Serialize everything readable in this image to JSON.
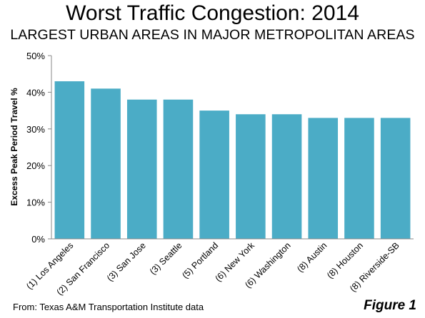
{
  "chart_data": {
    "type": "bar",
    "title": "Worst Traffic Congestion: 2014",
    "subtitle": "LARGEST URBAN AREAS IN MAJOR METROPOLITAN AREAS",
    "xlabel": "",
    "ylabel": "Excess Peak Period Travel %",
    "ylim": [
      0,
      50
    ],
    "yticks": [
      0,
      10,
      20,
      30,
      40,
      50
    ],
    "ytick_labels": [
      "0%",
      "10%",
      "20%",
      "30%",
      "40%",
      "50%"
    ],
    "grid": false,
    "legend": "none",
    "bar_color": "#4BACC6",
    "categories": [
      "(1) Los Angeles",
      "(2) San Francisco",
      "(3) San Jose",
      "(3) Seattle",
      "(5) Portland",
      "(6) New York",
      "(6) Washington",
      "(8) Austin",
      "(8) Houston",
      "(8) Riverside-SB"
    ],
    "values": [
      43,
      41,
      38,
      38,
      35,
      34,
      34,
      33,
      33,
      33
    ]
  },
  "footer": {
    "source": "From: Texas A&M Transportation Institute data",
    "figure_label": "Figure 1"
  }
}
